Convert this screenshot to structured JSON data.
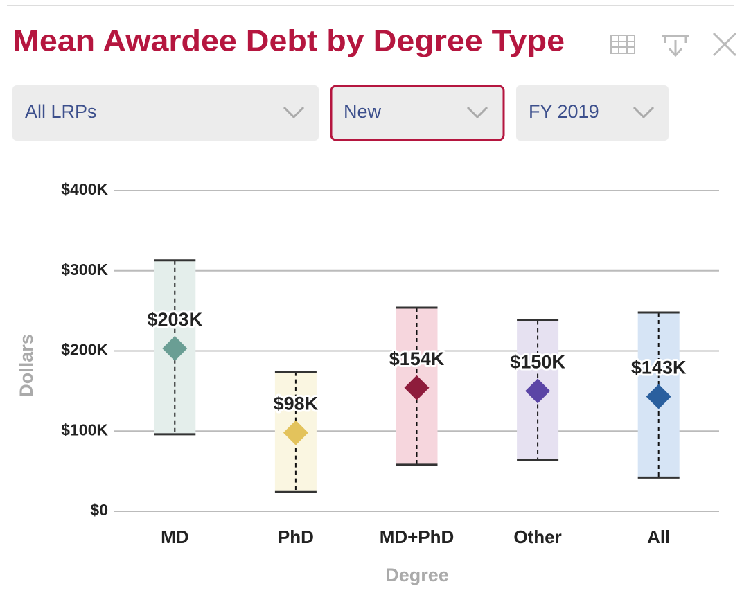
{
  "header": {
    "title": "Mean Awardee Debt by Degree Type"
  },
  "dropdowns": [
    "All LRPs",
    "New",
    "FY 2019"
  ],
  "chart_data": {
    "type": "range",
    "x_label": "Degree",
    "y_label": "Dollars",
    "categories": [
      "MD",
      "PhD",
      "MD+PhD",
      "Other",
      "All"
    ],
    "values": [
      203000,
      98000,
      154000,
      150000,
      143000
    ],
    "value_labels": [
      "$203K",
      "$98K",
      "$154K",
      "$150K",
      "$143K"
    ],
    "min": [
      96000,
      24000,
      58000,
      64000,
      42000
    ],
    "max": [
      313000,
      174000,
      254000,
      238000,
      248000
    ],
    "colors": [
      "#6a9e94",
      "#e3c35c",
      "#8e1c3c",
      "#5b45a6",
      "#2a5f9e"
    ],
    "fills": [
      "#e4eeeb",
      "#faf6e1",
      "#f6d6dd",
      "#e6e1f1",
      "#d6e4f5"
    ],
    "ylim": [
      0,
      400000
    ],
    "yticks": [
      {
        "value": 0,
        "label": "$0"
      },
      {
        "value": 100000,
        "label": "$100K"
      },
      {
        "value": 200000,
        "label": "$200K"
      },
      {
        "value": 300000,
        "label": "$300K"
      },
      {
        "value": 400000,
        "label": "$400K"
      }
    ],
    "grid": true
  }
}
